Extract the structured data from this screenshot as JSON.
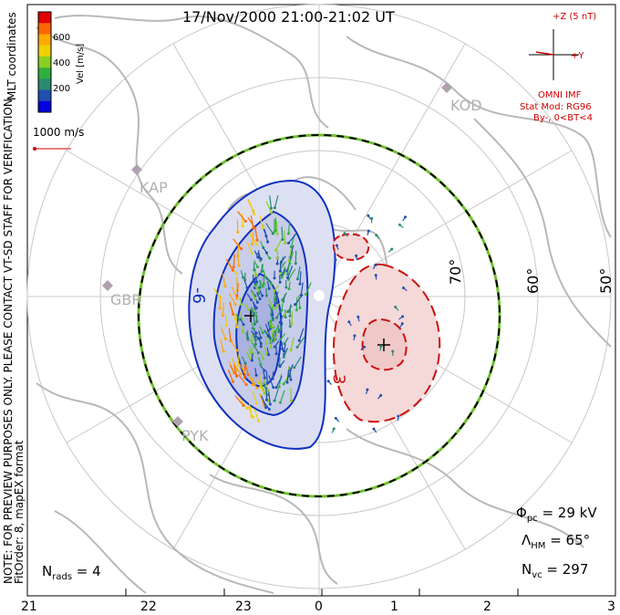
{
  "header": {
    "title": "17/Nov/2000 21:00-21:02 UT"
  },
  "color_bar": {
    "ticks": [
      "600",
      "400",
      "200"
    ],
    "label": "Vel [m/s]",
    "colors": [
      "#e00000",
      "#ff6600",
      "#ffaa00",
      "#f0d000",
      "#88d020",
      "#30b040",
      "#2a8a70",
      "#2050b0",
      "#0000e0"
    ]
  },
  "side_texts": {
    "coords": "MLT coordinates",
    "watermark": "NOTE: FOR PREVIEW PURPOSES ONLY. PLEASE CONTACT VT-SD STAFF FOR VERIFICATION.",
    "fit": "FitOrder: 8, mapEX format"
  },
  "scale_vector": {
    "label": "1000 m/s"
  },
  "imf": {
    "z_label": "+Z (5 nT)",
    "y_label": "+Y",
    "source": "OMNI IMF",
    "model": "Stat Mod: RG96",
    "condition": "By-, 0<BT<4",
    "color": "#d00000"
  },
  "stations": [
    {
      "code": "KOD"
    },
    {
      "code": "KAP"
    },
    {
      "code": "GBR"
    },
    {
      "code": "PYK"
    }
  ],
  "latitude_labels": [
    "70°",
    "60°",
    "50°"
  ],
  "contours": {
    "negative_label": "-6",
    "positive_label": "3",
    "neg_color": "#1030c0",
    "pos_color": "#cc1010"
  },
  "stats": {
    "phi_sym": "Φ",
    "phi_sub": "pc",
    "phi_value": " = 29 kV",
    "lambda_sym": "Λ",
    "lambda_sub": "HM",
    "lambda_value": " = 65°",
    "nvc_sym": "N",
    "nvc_sub": "vc",
    "nvc_value": " = 297",
    "nrads_sym": "N",
    "nrads_sub": "rads",
    "nrads_value": " = 4"
  },
  "mlt_axis": [
    "21",
    "22",
    "23",
    "0",
    "1",
    "2",
    "3"
  ]
}
